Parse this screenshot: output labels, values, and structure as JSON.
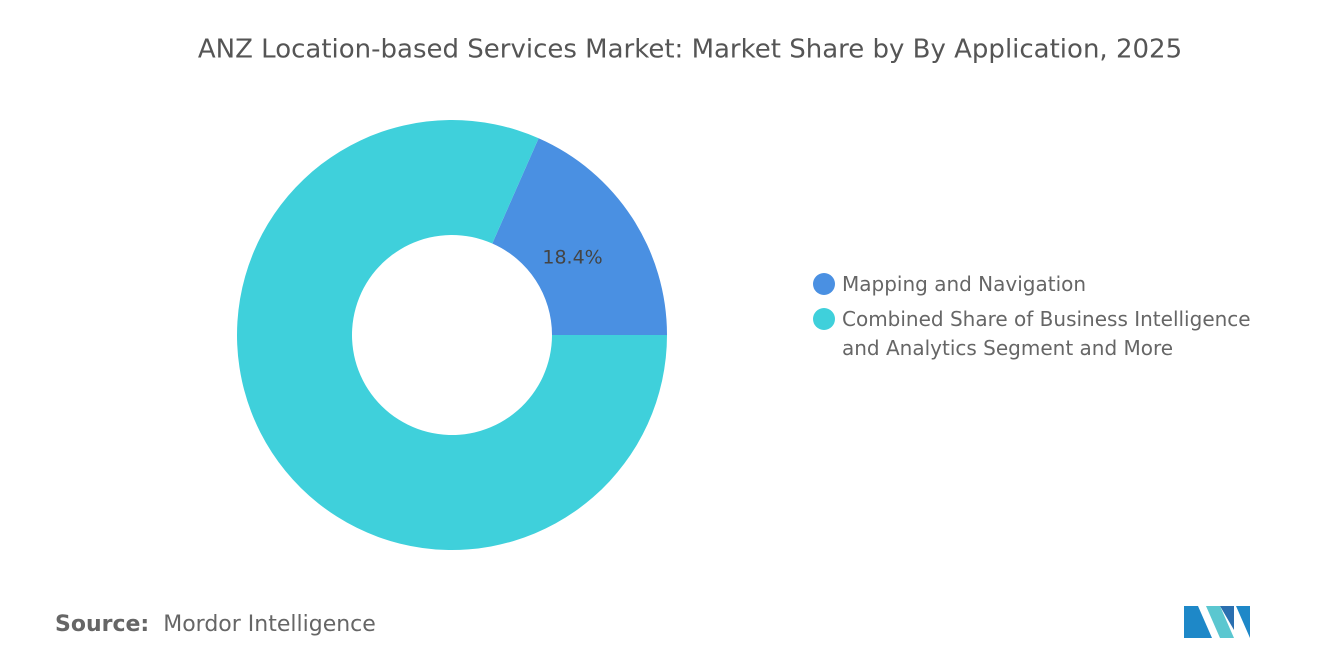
{
  "chart_data": {
    "type": "donut",
    "title": "ANZ Location-based Services Market: Market Share by By Application, 2025",
    "series": [
      {
        "name": "Mapping and Navigation",
        "color": "#4a90e2",
        "values": [
          18.4
        ],
        "value_labels": [
          "18.4%"
        ]
      },
      {
        "name": "Combined Share of Business Intelligence and Analytics Segment and More",
        "color": "#3fd0db",
        "values": [
          81.6
        ]
      }
    ],
    "legend": "right",
    "source_label": "Source:",
    "source": "Mordor Intelligence"
  }
}
